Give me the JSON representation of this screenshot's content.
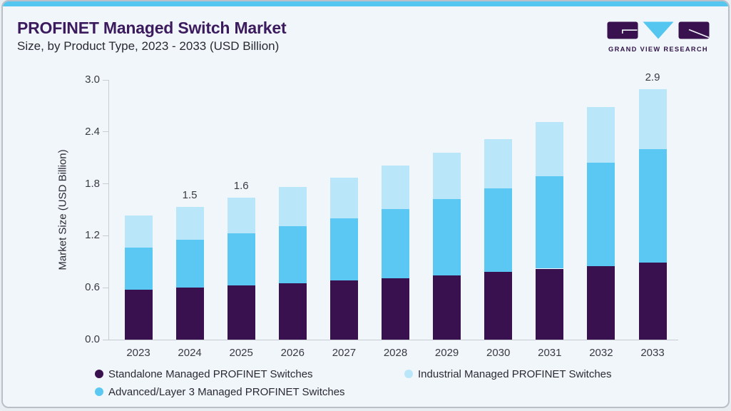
{
  "header": {
    "title": "PROFINET Managed Switch Market",
    "subtitle": "Size, by Product Type, 2023 - 2033 (USD Billion)"
  },
  "logo": {
    "text": "GRAND VIEW RESEARCH"
  },
  "colors": {
    "accent_blue": "#55c6f0",
    "standalone_purple": "#39114f",
    "advanced_blue": "#5bc8f3",
    "industrial_light_blue": "#b9e7f9",
    "title_purple": "#3b1b5e",
    "background": "#f0f6fa",
    "axis_line": "#c7ccd2",
    "text_dark": "#2b2a33"
  },
  "chart_data": {
    "type": "bar",
    "stacked": true,
    "title": "PROFINET Managed Switch Market Size, by Product Type, 2023 - 2033 (USD Billion)",
    "ylabel": "Market Size (USD Billion)",
    "xlabel": "",
    "ylim": [
      0,
      3.0
    ],
    "yticks": [
      0.0,
      0.6,
      1.2,
      1.8,
      2.4,
      3.0
    ],
    "grid": false,
    "legend_position": "bottom",
    "categories": [
      "2023",
      "2024",
      "2025",
      "2026",
      "2027",
      "2028",
      "2029",
      "2030",
      "2031",
      "2032",
      "2033"
    ],
    "series": [
      {
        "name": "Standalone Managed PROFINET Switches",
        "color": "#39114f",
        "values": [
          0.58,
          0.6,
          0.63,
          0.65,
          0.68,
          0.71,
          0.74,
          0.78,
          0.82,
          0.85,
          0.89
        ]
      },
      {
        "name": "Advanced/Layer 3 Managed PROFINET Switches",
        "color": "#5bc8f3",
        "values": [
          0.48,
          0.55,
          0.6,
          0.66,
          0.72,
          0.8,
          0.88,
          0.97,
          1.07,
          1.19,
          1.31
        ]
      },
      {
        "name": "Industrial Managed PROFINET Switches",
        "color": "#b9e7f9",
        "values": [
          0.37,
          0.38,
          0.41,
          0.45,
          0.47,
          0.5,
          0.54,
          0.57,
          0.62,
          0.65,
          0.69
        ]
      }
    ],
    "totals": [
      1.43,
      1.53,
      1.64,
      1.76,
      1.87,
      2.01,
      2.16,
      2.32,
      2.51,
      2.69,
      2.89
    ],
    "total_labels": {
      "2024": "1.5",
      "2025": "1.6",
      "2033": "2.9"
    }
  },
  "legend": {
    "items": [
      {
        "label": "Standalone Managed PROFINET Switches",
        "color": "#39114f"
      },
      {
        "label": "Industrial Managed PROFINET Switches",
        "color": "#b9e7f9"
      },
      {
        "label": "Advanced/Layer 3 Managed PROFINET Switches",
        "color": "#5bc8f3"
      }
    ]
  }
}
